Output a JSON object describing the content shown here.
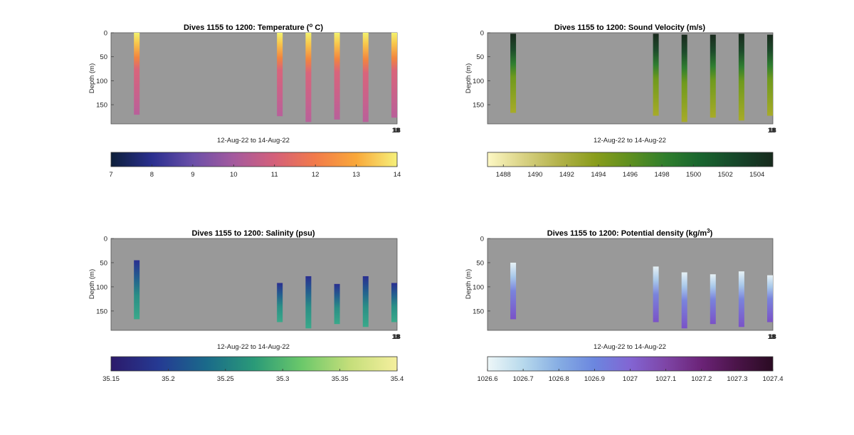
{
  "chart_data": [
    {
      "type": "heatmap",
      "title": "Dives 1155 to 1200: Temperature (",
      "title_sup": "o",
      "title_suffix": " C)",
      "xlabel": "12-Aug-22 to 14-Aug-22",
      "ylabel": "Depth (m)",
      "x_tick_labels": [
        "18",
        "18"
      ],
      "ylim": [
        190,
        0
      ],
      "yticks": [
        0,
        50,
        100,
        150
      ],
      "background": "#999999",
      "columns": [
        {
          "x": 0.09,
          "top": 0,
          "bottom": 171
        },
        {
          "x": 0.59,
          "top": 0,
          "bottom": 174
        },
        {
          "x": 0.69,
          "top": 0,
          "bottom": 186
        },
        {
          "x": 0.79,
          "top": 0,
          "bottom": 181
        },
        {
          "x": 0.89,
          "top": 0,
          "bottom": 186
        },
        {
          "x": 0.99,
          "top": 0,
          "bottom": 177
        }
      ],
      "colorbar": {
        "min": 7,
        "max": 14,
        "ticks": [
          7,
          8,
          9,
          10,
          11,
          12,
          13,
          14
        ],
        "colors": [
          "#0d1f3a",
          "#2a2f8f",
          "#6a4fa8",
          "#a45a9e",
          "#d4607a",
          "#f27b4a",
          "#f9a83a",
          "#f6f07a"
        ]
      },
      "profile_colors": [
        [
          0,
          "#f3f26f"
        ],
        [
          0.12,
          "#f8c94c"
        ],
        [
          0.3,
          "#f2853f"
        ],
        [
          0.45,
          "#d9647b"
        ],
        [
          1,
          "#b9609a"
        ]
      ]
    },
    {
      "type": "heatmap",
      "title": "Dives 1155 to 1200: Sound Velocity (m/s)",
      "xlabel": "12-Aug-22 to 14-Aug-22",
      "ylabel": "Depth (m)",
      "x_tick_labels": [
        "18",
        "18"
      ],
      "ylim": [
        190,
        0
      ],
      "yticks": [
        0,
        50,
        100,
        150
      ],
      "background": "#999999",
      "columns": [
        {
          "x": 0.09,
          "top": 2,
          "bottom": 167
        },
        {
          "x": 0.59,
          "top": 2,
          "bottom": 173
        },
        {
          "x": 0.69,
          "top": 4,
          "bottom": 186
        },
        {
          "x": 0.79,
          "top": 4,
          "bottom": 177
        },
        {
          "x": 0.89,
          "top": 2,
          "bottom": 183
        },
        {
          "x": 0.99,
          "top": 4,
          "bottom": 173
        }
      ],
      "colorbar": {
        "min": 1487,
        "max": 1505,
        "ticks": [
          1488,
          1490,
          1492,
          1494,
          1496,
          1498,
          1500,
          1502,
          1504
        ],
        "colors": [
          "#fdf8c4",
          "#d9d284",
          "#b3b24a",
          "#8a9d1c",
          "#5e8f1f",
          "#2f7e2d",
          "#18642e",
          "#16462a",
          "#172a1d"
        ]
      },
      "profile_colors": [
        [
          0,
          "#1a2a1e"
        ],
        [
          0.2,
          "#1d4b2b"
        ],
        [
          0.38,
          "#2f7e30"
        ],
        [
          0.55,
          "#6f9a1d"
        ],
        [
          1,
          "#a7ab28"
        ]
      ]
    },
    {
      "type": "heatmap",
      "title": "Dives 1155 to 1200: Salinity (psu)",
      "xlabel": "12-Aug-22 to 14-Aug-22",
      "ylabel": "Depth (m)",
      "x_tick_labels": [
        "18",
        "18"
      ],
      "ylim": [
        190,
        0
      ],
      "yticks": [
        0,
        50,
        100,
        150
      ],
      "background": "#999999",
      "columns": [
        {
          "x": 0.09,
          "top": 45,
          "bottom": 167
        },
        {
          "x": 0.59,
          "top": 92,
          "bottom": 173
        },
        {
          "x": 0.69,
          "top": 78,
          "bottom": 186
        },
        {
          "x": 0.79,
          "top": 94,
          "bottom": 177
        },
        {
          "x": 0.89,
          "top": 78,
          "bottom": 183
        },
        {
          "x": 0.99,
          "top": 92,
          "bottom": 173
        }
      ],
      "colorbar": {
        "min": 35.15,
        "max": 35.4,
        "ticks": [
          35.15,
          35.2,
          35.25,
          35.3,
          35.35,
          35.4
        ],
        "colors": [
          "#2c1a6b",
          "#253a93",
          "#1a6a8a",
          "#2a9a78",
          "#6bc86a",
          "#c4de7a",
          "#f5ef9e"
        ]
      },
      "profile_colors": [
        [
          0,
          "#2a2f90"
        ],
        [
          0.3,
          "#235f8f"
        ],
        [
          0.6,
          "#2a8f86"
        ],
        [
          1,
          "#3aa98a"
        ]
      ]
    },
    {
      "type": "heatmap",
      "title": "Dives 1155 to 1200: Potential density (kg/m",
      "title_sup": "3",
      "title_suffix": ")",
      "xlabel": "12-Aug-22 to 14-Aug-22",
      "ylabel": "Depth (m)",
      "x_tick_labels": [
        "18",
        "18"
      ],
      "ylim": [
        190,
        0
      ],
      "yticks": [
        0,
        50,
        100,
        150
      ],
      "background": "#999999",
      "columns": [
        {
          "x": 0.09,
          "top": 50,
          "bottom": 167
        },
        {
          "x": 0.59,
          "top": 58,
          "bottom": 173
        },
        {
          "x": 0.69,
          "top": 70,
          "bottom": 186
        },
        {
          "x": 0.79,
          "top": 74,
          "bottom": 177
        },
        {
          "x": 0.89,
          "top": 68,
          "bottom": 183
        },
        {
          "x": 0.99,
          "top": 76,
          "bottom": 173
        }
      ],
      "colorbar": {
        "min": 1026.6,
        "max": 1027.4,
        "ticks": [
          1026.6,
          1026.7,
          1026.8,
          1026.9,
          1027,
          1027.1,
          1027.2,
          1027.3,
          1027.4
        ],
        "colors": [
          "#eef7f8",
          "#b7d9ec",
          "#86ade3",
          "#6b86df",
          "#8265d3",
          "#7e45a6",
          "#6b2377",
          "#4a1448",
          "#2a0b22"
        ]
      },
      "profile_colors": [
        [
          0,
          "#e6f1f5"
        ],
        [
          0.25,
          "#a8c8ea"
        ],
        [
          0.5,
          "#7a84dc"
        ],
        [
          1,
          "#7a52c8"
        ]
      ]
    }
  ]
}
